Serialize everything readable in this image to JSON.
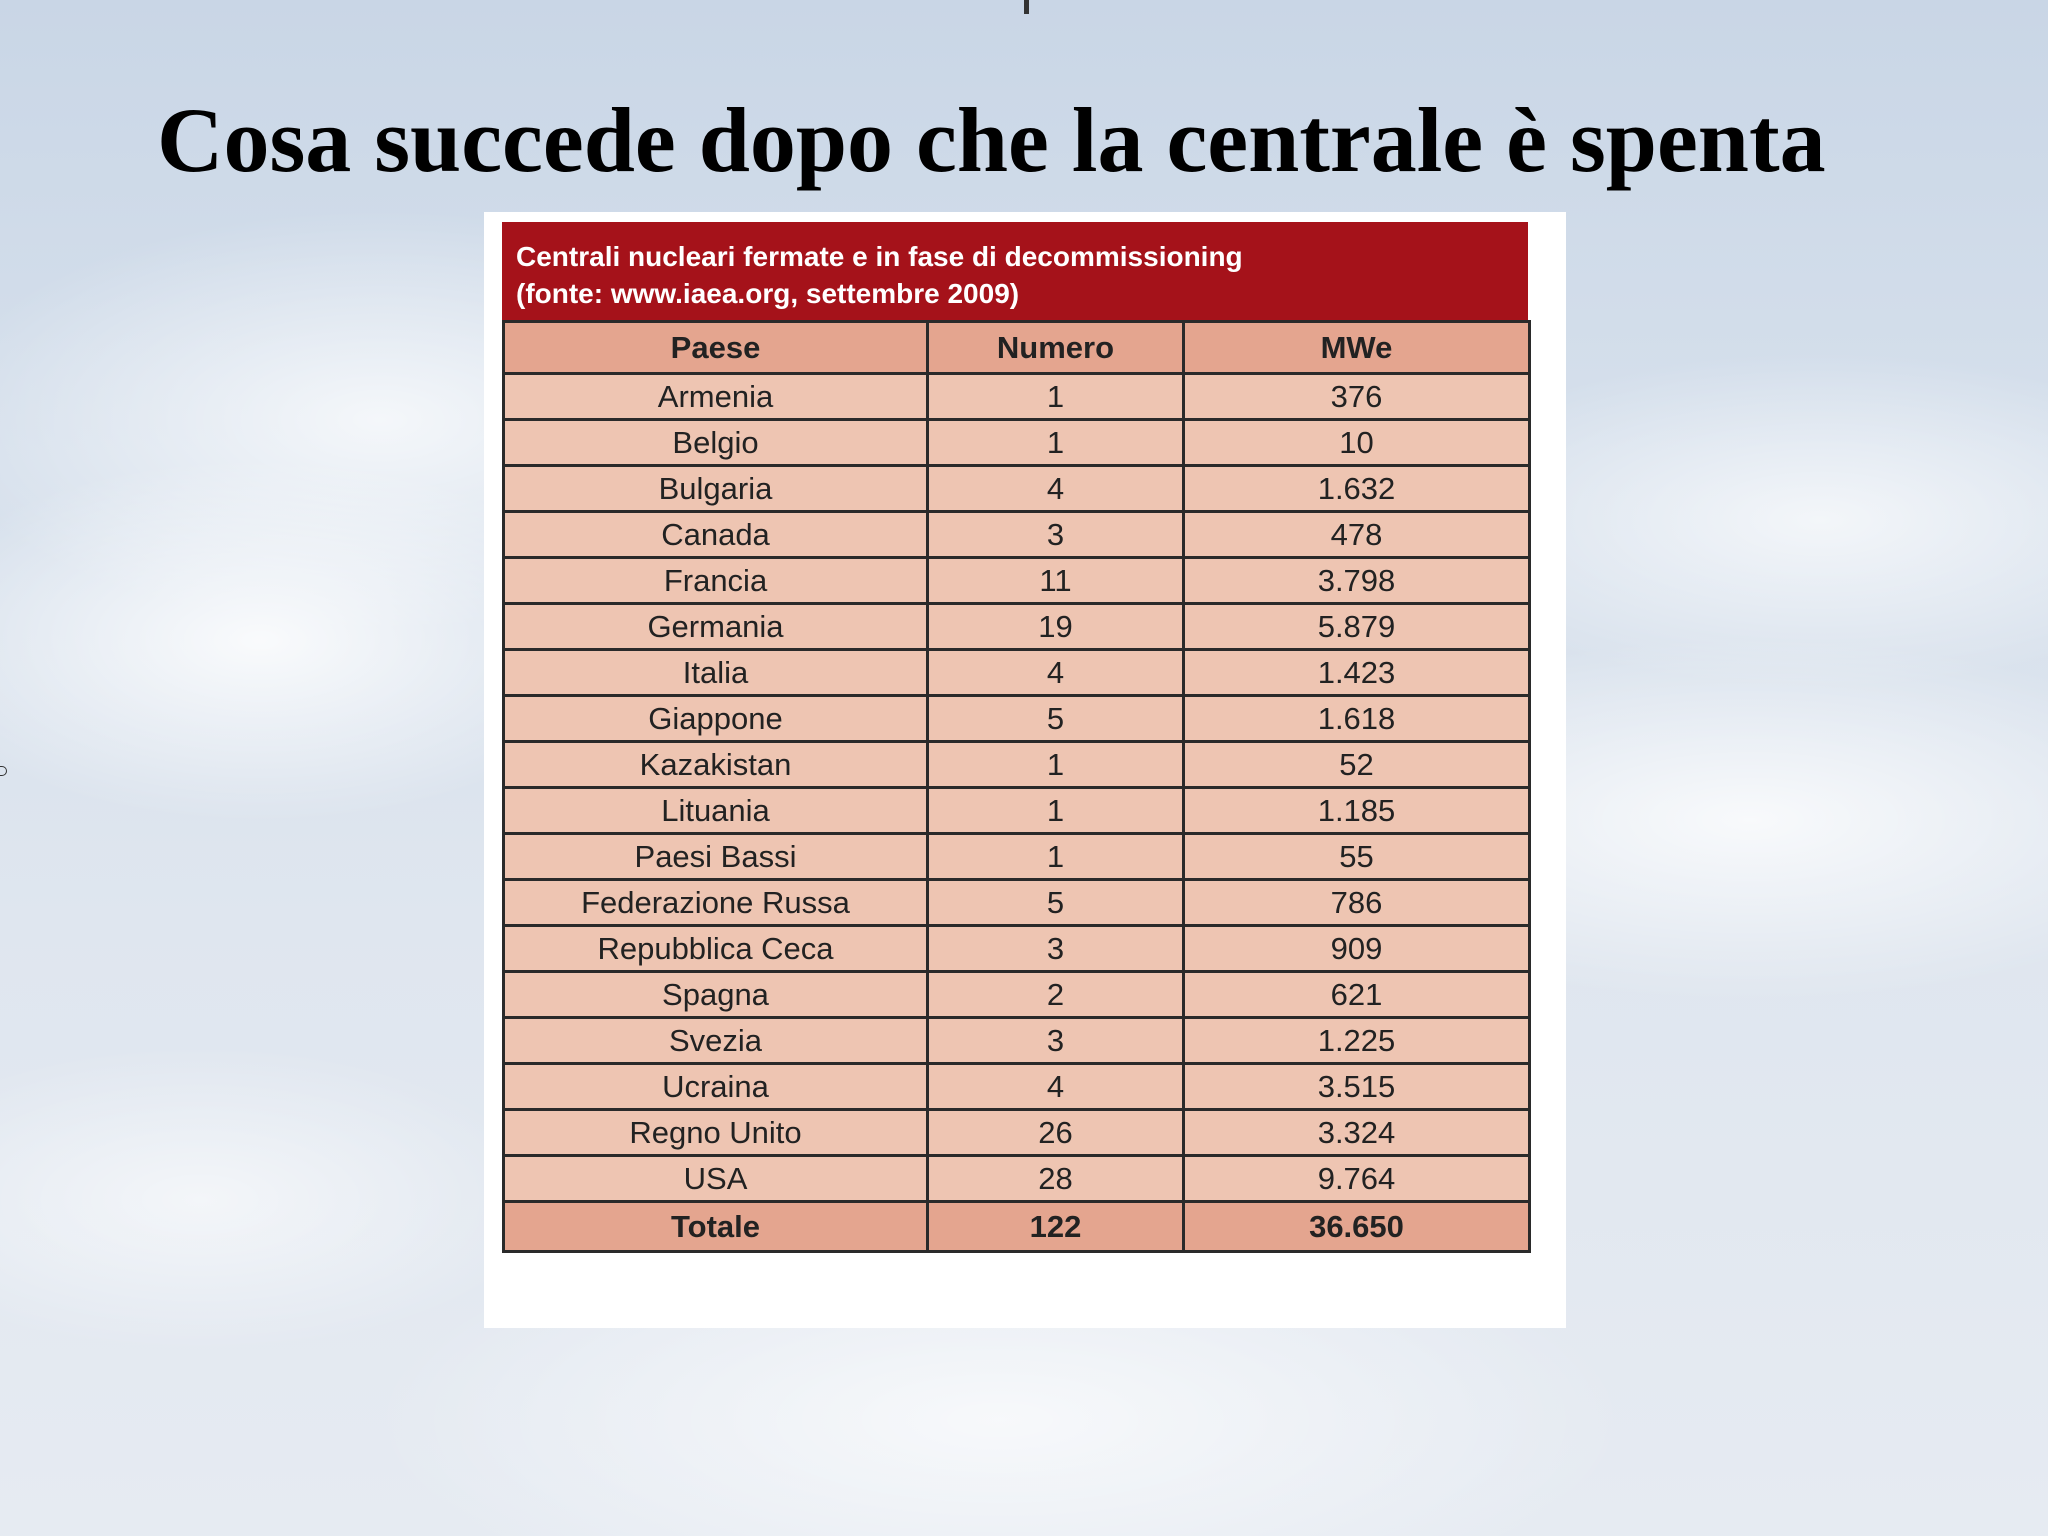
{
  "slide": {
    "title": "Cosa succede dopo che la centrale è spenta"
  },
  "table": {
    "caption_line1": "Centrali nucleari fermate e in fase di decommissioning",
    "caption_line2": "(fonte: www.iaea.org, settembre 2009)",
    "header_color": "#a5121a",
    "columns": [
      "Paese",
      "Numero",
      "MWe"
    ],
    "rows": [
      [
        "Armenia",
        "1",
        "376"
      ],
      [
        "Belgio",
        "1",
        "10"
      ],
      [
        "Bulgaria",
        "4",
        "1.632"
      ],
      [
        "Canada",
        "3",
        "478"
      ],
      [
        "Francia",
        "11",
        "3.798"
      ],
      [
        "Germania",
        "19",
        "5.879"
      ],
      [
        "Italia",
        "4",
        "1.423"
      ],
      [
        "Giappone",
        "5",
        "1.618"
      ],
      [
        "Kazakistan",
        "1",
        "52"
      ],
      [
        "Lituania",
        "1",
        "1.185"
      ],
      [
        "Paesi Bassi",
        "1",
        "55"
      ],
      [
        "Federazione Russa",
        "5",
        "786"
      ],
      [
        "Repubblica Ceca",
        "3",
        "909"
      ],
      [
        "Spagna",
        "2",
        "621"
      ],
      [
        "Svezia",
        "3",
        "1.225"
      ],
      [
        "Ucraina",
        "4",
        "3.515"
      ],
      [
        "Regno Unito",
        "26",
        "3.324"
      ],
      [
        "USA",
        "28",
        "9.764"
      ]
    ],
    "total": [
      "Totale",
      "122",
      "36.650"
    ]
  }
}
